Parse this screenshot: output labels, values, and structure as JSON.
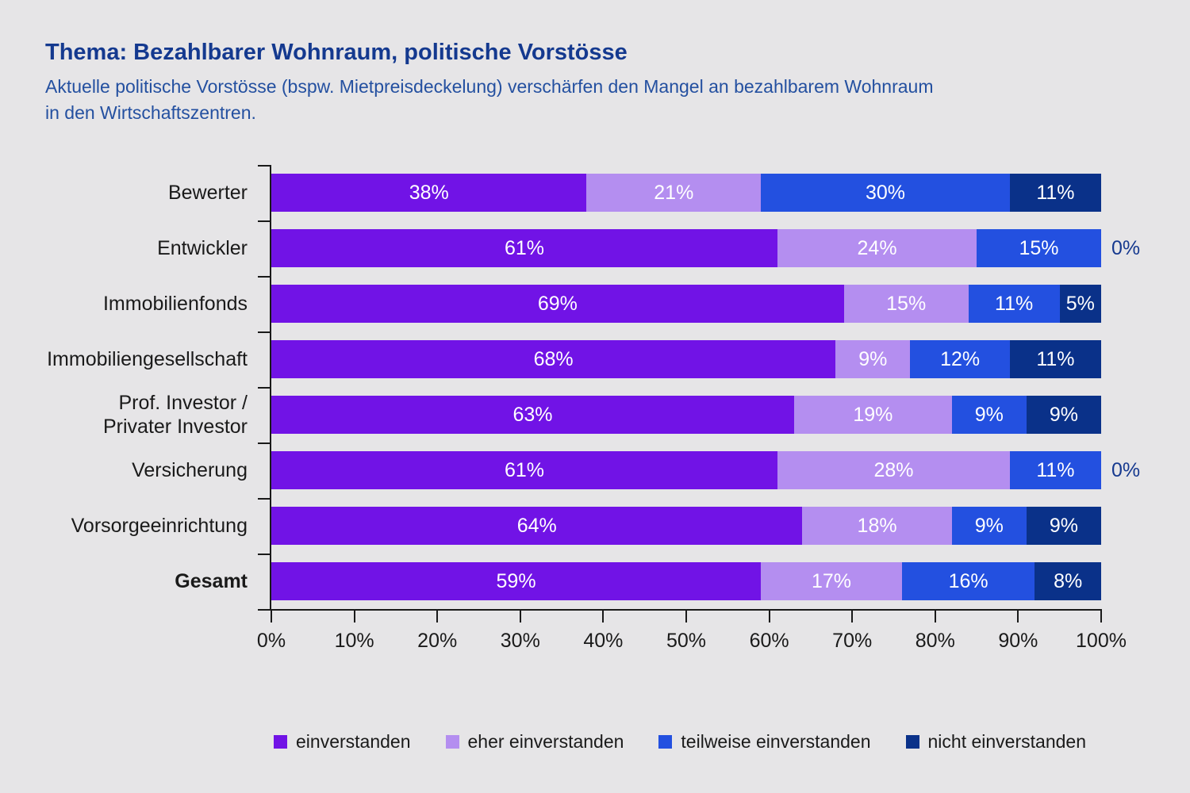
{
  "colors": {
    "background": "#e6e5e7",
    "title": "#14398f",
    "subtitle": "#2450a0",
    "axis": "#1a1a1a",
    "bar_label": "#ffffff",
    "outside_label": "#16398f"
  },
  "title": "Thema: Bezahlbarer Wohnraum, politische Vorstösse",
  "subtitle": "Aktuelle politische Vorstösse (bspw. Mietpreisdeckelung) verschärfen den Mangel an bezahlbarem Wohnraum\nin den Wirtschaftszentren.",
  "chart_data": {
    "type": "bar",
    "orientation": "horizontal",
    "stacked": true,
    "grid": false,
    "legend_position": "bottom",
    "xlim": [
      0,
      100
    ],
    "x_ticks": [
      "0%",
      "10%",
      "20%",
      "30%",
      "40%",
      "50%",
      "60%",
      "70%",
      "80%",
      "90%",
      "100%"
    ],
    "categories": [
      {
        "label": "Bewerter",
        "bold": false
      },
      {
        "label": "Entwickler",
        "bold": false
      },
      {
        "label": "Immobilienfonds",
        "bold": false
      },
      {
        "label": "Immobiliengesellschaft",
        "bold": false
      },
      {
        "label": "Prof. Investor /\nPrivater Investor",
        "bold": false
      },
      {
        "label": "Versicherung",
        "bold": false
      },
      {
        "label": "Vorsorgeeinrichtung",
        "bold": false
      },
      {
        "label": "Gesamt",
        "bold": true
      }
    ],
    "series": [
      {
        "name": "einverstanden",
        "color": "#7113e6",
        "values": [
          38,
          61,
          69,
          68,
          63,
          61,
          64,
          59
        ]
      },
      {
        "name": "eher einverstanden",
        "color": "#b48ef0",
        "values": [
          21,
          24,
          15,
          9,
          19,
          28,
          18,
          17
        ]
      },
      {
        "name": "teilweise einverstanden",
        "color": "#2350e0",
        "values": [
          30,
          15,
          11,
          12,
          9,
          11,
          9,
          16
        ]
      },
      {
        "name": "nicht einverstanden",
        "color": "#0a3189",
        "values": [
          11,
          0,
          5,
          11,
          9,
          0,
          9,
          8
        ]
      }
    ],
    "value_suffix": "%"
  }
}
